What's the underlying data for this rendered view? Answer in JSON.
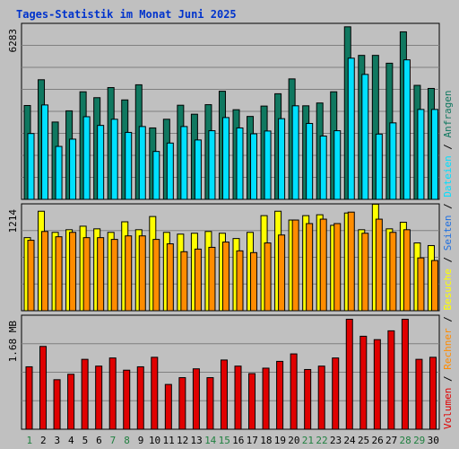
{
  "title": "Tages-Statistik im Monat Juni 2025",
  "colors": {
    "anfragen": "#107860",
    "dateien": "#00e0ff",
    "seiten": "#2070e0",
    "besuche": "#ffff00",
    "rechner": "#ff8c00",
    "volumen": "#e00000",
    "weekend_label": "#208040",
    "weekday_label": "#000000",
    "background": "#c0c0c0",
    "grid": "#808080"
  },
  "chart_data": [
    {
      "type": "bar",
      "panel": "top",
      "ymax_label": "6283",
      "ylim": [
        0,
        6283
      ],
      "categories": [
        "1",
        "2",
        "3",
        "4",
        "5",
        "6",
        "7",
        "8",
        "9",
        "10",
        "11",
        "12",
        "13",
        "14",
        "15",
        "16",
        "17",
        "18",
        "19",
        "20",
        "21",
        "22",
        "23",
        "24",
        "25",
        "26",
        "27",
        "28",
        "29",
        "30"
      ],
      "weekend": [
        1,
        7,
        8,
        14,
        15,
        21,
        22,
        28,
        29
      ],
      "series": [
        {
          "name": "Anfragen",
          "key": "anfragen",
          "values": [
            3350,
            4270,
            2760,
            3160,
            3840,
            3630,
            3990,
            3550,
            4090,
            2550,
            2860,
            3360,
            3040,
            3380,
            3860,
            3200,
            2960,
            3330,
            3770,
            4300,
            3340,
            3440,
            3840,
            6160,
            5140,
            5140,
            4860,
            5980,
            4070,
            3960
          ]
        },
        {
          "name": "Dateien",
          "key": "dateien",
          "values": [
            2350,
            3370,
            1890,
            2150,
            2950,
            2640,
            2860,
            2390,
            2600,
            1710,
            2010,
            2600,
            2120,
            2450,
            2920,
            2550,
            2340,
            2440,
            2880,
            3340,
            2710,
            2260,
            2450,
            5040,
            4460,
            2330,
            2730,
            4980,
            3210,
            3210
          ]
        }
      ]
    },
    {
      "type": "bar",
      "panel": "middle",
      "ymax_label": "1214",
      "ylim": [
        0,
        1214
      ],
      "categories": [
        "1",
        "2",
        "3",
        "4",
        "5",
        "6",
        "7",
        "8",
        "9",
        "10",
        "11",
        "12",
        "13",
        "14",
        "15",
        "16",
        "17",
        "18",
        "19",
        "20",
        "21",
        "22",
        "23",
        "24",
        "25",
        "26",
        "27",
        "28",
        "29",
        "30"
      ],
      "weekend": [
        1,
        7,
        8,
        14,
        15,
        21,
        22,
        28,
        29
      ],
      "series": [
        {
          "name": "Besuche",
          "key": "besuche",
          "values": [
            830,
            1130,
            890,
            920,
            960,
            930,
            890,
            1010,
            920,
            1070,
            890,
            870,
            880,
            900,
            880,
            820,
            890,
            1080,
            1130,
            1030,
            1080,
            1090,
            970,
            1110,
            920,
            1210,
            930,
            1005,
            770,
            740
          ]
        },
        {
          "name": "Rechner",
          "key": "rechner",
          "values": [
            800,
            900,
            840,
            890,
            830,
            830,
            810,
            850,
            850,
            810,
            760,
            670,
            700,
            720,
            780,
            680,
            660,
            770,
            860,
            1030,
            990,
            1040,
            990,
            1120,
            880,
            1040,
            890,
            920,
            600,
            570
          ]
        }
      ]
    },
    {
      "type": "bar",
      "panel": "bottom",
      "ymax_label": "1.68 MB",
      "ylim": [
        0,
        1.68
      ],
      "categories": [
        "1",
        "2",
        "3",
        "4",
        "5",
        "6",
        "7",
        "8",
        "9",
        "10",
        "11",
        "12",
        "13",
        "14",
        "15",
        "16",
        "17",
        "18",
        "19",
        "20",
        "21",
        "22",
        "23",
        "24",
        "25",
        "26",
        "27",
        "28",
        "29",
        "30"
      ],
      "weekend": [
        1,
        7,
        8,
        14,
        15,
        21,
        22,
        28,
        29
      ],
      "series": [
        {
          "name": "Volumen",
          "key": "volumen",
          "values": [
            0.92,
            1.22,
            0.73,
            0.81,
            1.03,
            0.93,
            1.05,
            0.87,
            0.92,
            1.06,
            0.66,
            0.76,
            0.89,
            0.76,
            1.02,
            0.93,
            0.82,
            0.9,
            1.0,
            1.11,
            0.88,
            0.93,
            1.05,
            1.62,
            1.37,
            1.32,
            1.45,
            1.62,
            1.03,
            1.06
          ]
        }
      ]
    }
  ],
  "legend": [
    {
      "text": "Volumen",
      "key": "volumen"
    },
    {
      "text": " / ",
      "key": "sep"
    },
    {
      "text": "Rechner",
      "key": "rechner"
    },
    {
      "text": " / ",
      "key": "sep"
    },
    {
      "text": "Besuche",
      "key": "besuche"
    },
    {
      "text": " / ",
      "key": "sep"
    },
    {
      "text": "Seiten",
      "key": "seiten"
    },
    {
      "text": " / ",
      "key": "sep"
    },
    {
      "text": "Dateien",
      "key": "dateien"
    },
    {
      "text": " / ",
      "key": "sep"
    },
    {
      "text": "Anfragen",
      "key": "anfragen"
    }
  ]
}
